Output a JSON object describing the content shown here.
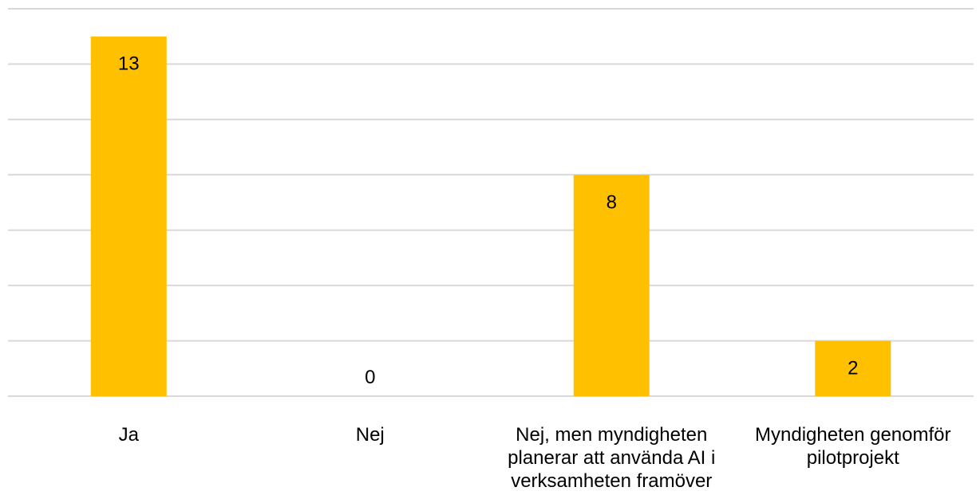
{
  "chart_data": {
    "type": "bar",
    "categories": [
      [
        "Ja"
      ],
      [
        "Nej"
      ],
      [
        "Nej, men myndigheten",
        "planerar att använda AI i",
        "verksamheten framöver"
      ],
      [
        "Myndigheten genomför",
        "pilotprojekt"
      ]
    ],
    "values": [
      13,
      0,
      8,
      2
    ],
    "data_labels": [
      "13",
      "0",
      "8",
      "2"
    ],
    "bar_color": "#FFC000",
    "ylim": [
      0,
      14
    ],
    "y_gridline_step": 2,
    "grid": true,
    "legend": "none",
    "title": "",
    "xlabel": "",
    "ylabel": ""
  }
}
